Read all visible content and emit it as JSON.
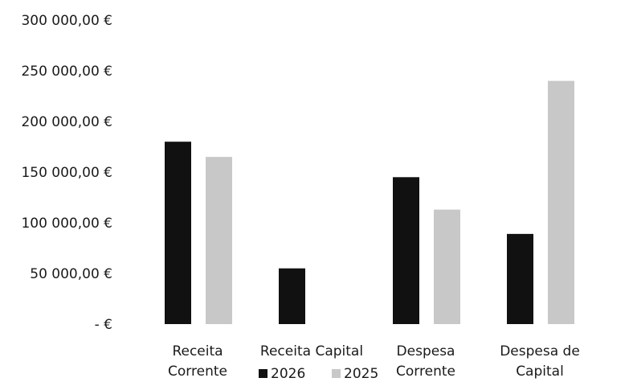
{
  "chart_data": {
    "type": "bar",
    "categories": [
      [
        "Receita",
        "Corrente"
      ],
      [
        "Receita Capital"
      ],
      [
        "Despesa",
        "Corrente"
      ],
      [
        "Despesa de",
        "Capital"
      ]
    ],
    "series": [
      {
        "name": "2026",
        "color": "#111111",
        "values": [
          180000,
          55000,
          145000,
          89000
        ]
      },
      {
        "name": "2025",
        "color": "#c8c8c8",
        "values": [
          165000,
          0,
          113000,
          240000
        ]
      }
    ],
    "y_ticks": [
      {
        "value": 300000,
        "label": "300 000,00 €"
      },
      {
        "value": 250000,
        "label": "250 000,00 €"
      },
      {
        "value": 200000,
        "label": "200 000,00 €"
      },
      {
        "value": 150000,
        "label": "150 000,00 €"
      },
      {
        "value": 100000,
        "label": "100 000,00 €"
      },
      {
        "value": 50000,
        "label": "50 000,00 €"
      },
      {
        "value": 0,
        "label": "-   €"
      }
    ],
    "ylim": [
      0,
      300000
    ],
    "grid": false,
    "legend_position": "bottom"
  }
}
